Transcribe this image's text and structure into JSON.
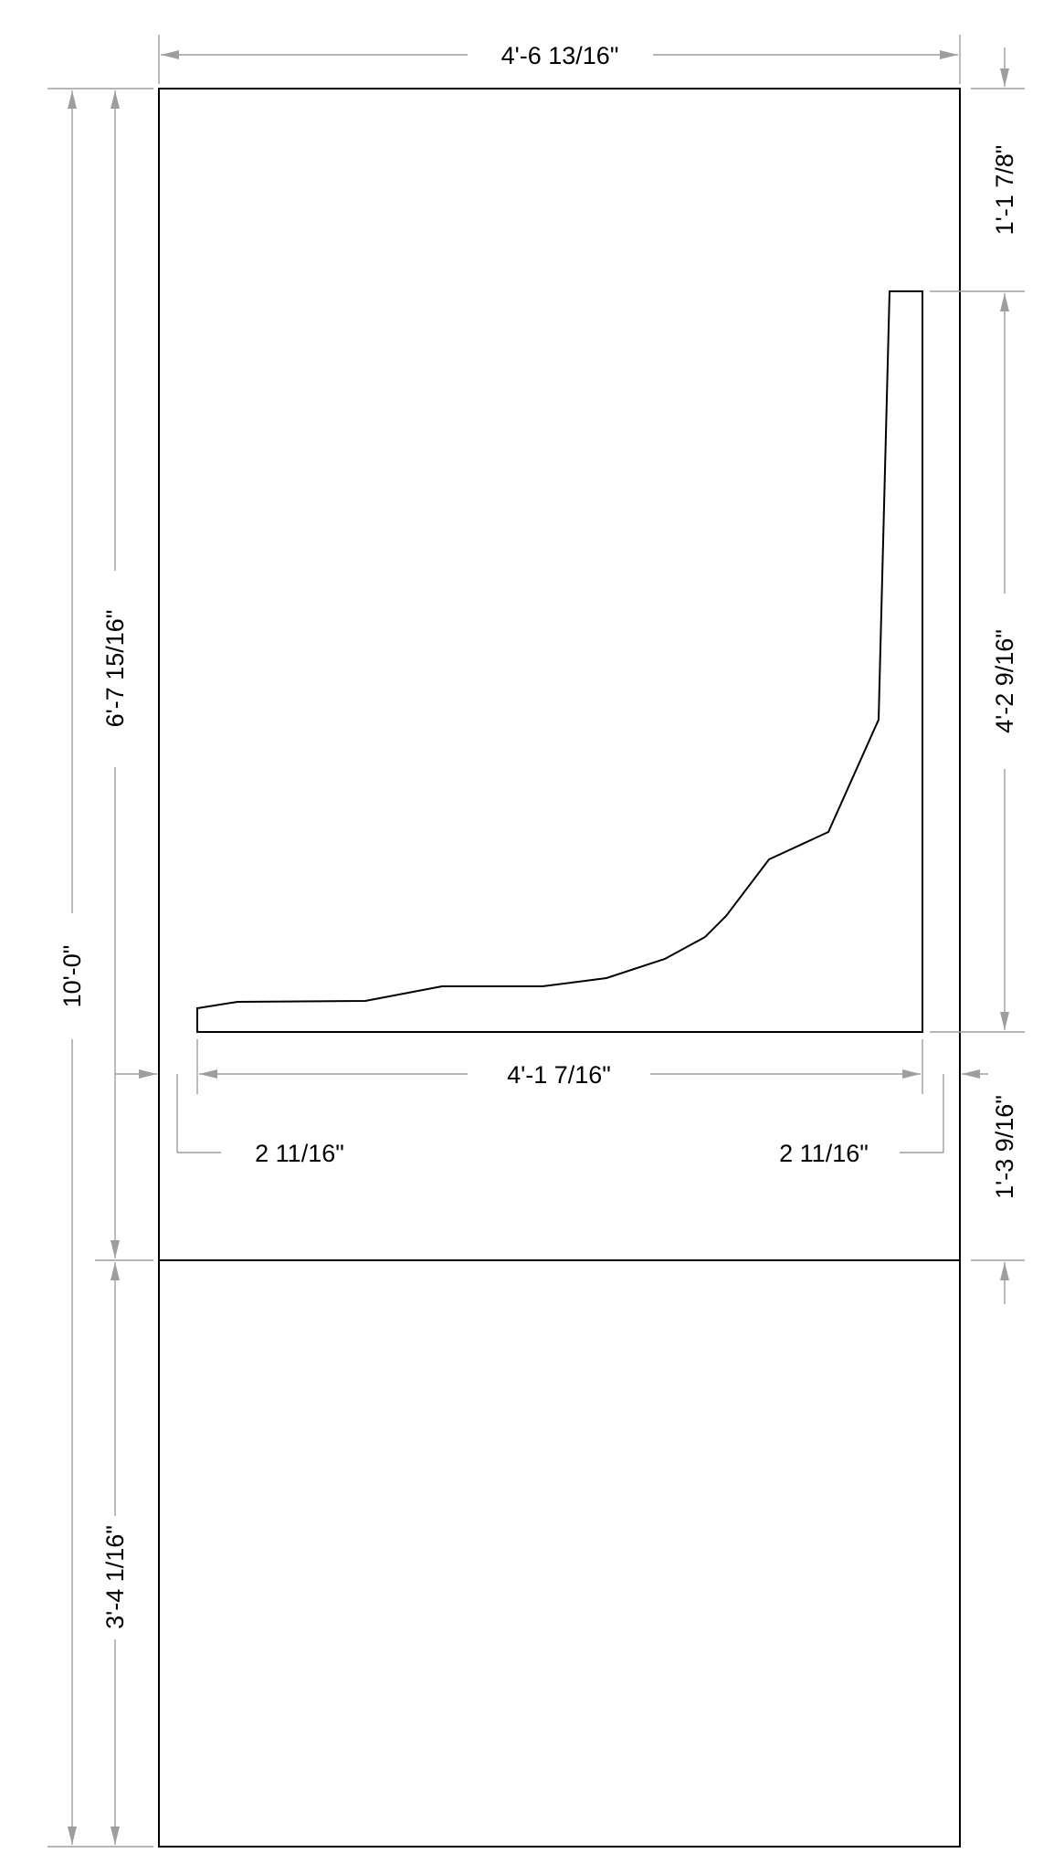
{
  "dimensions": {
    "overall_width": "4'-6 13/16\"",
    "overall_height": "10'-0\"",
    "upper_section_height": "6'-7 15/16\"",
    "lower_section_height": "3'-4 1/16\"",
    "top_offset": "1'-1 7/8\"",
    "profile_height": "4'-2 9/16\"",
    "bottom_offset": "1'-3 9/16\"",
    "profile_width": "4'-1 7/16\"",
    "left_inset": "2 11/16\"",
    "right_inset": "2 11/16\""
  }
}
